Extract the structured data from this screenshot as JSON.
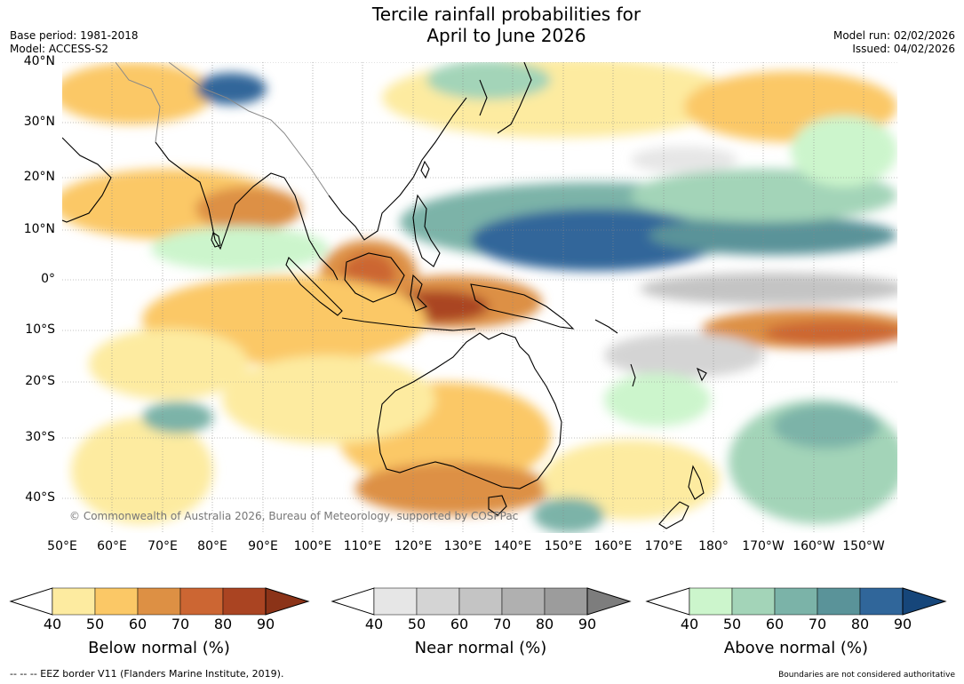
{
  "title_line1": "Tercile rainfall probabilities for",
  "title_line2": "April to June 2026",
  "meta": {
    "base_period": "Base period: 1981-2018",
    "model": "Model: ACCESS-S2",
    "model_run": "Model run: 02/02/2026",
    "issued": "Issued: 04/02/2026"
  },
  "map": {
    "copyright": "© Commonwealth of Australia 2026, Bureau of Meteorology, supported by COSPPac",
    "lat_labels": [
      "40°N",
      "30°N",
      "20°N",
      "10°N",
      "0°",
      "10°S",
      "20°S",
      "30°S",
      "40°S"
    ],
    "lon_labels": [
      "50°E",
      "60°E",
      "70°E",
      "80°E",
      "90°E",
      "100°E",
      "110°E",
      "120°E",
      "130°E",
      "140°E",
      "150°E",
      "160°E",
      "170°E",
      "180°",
      "170°W",
      "160°W",
      "150°W"
    ]
  },
  "colorbars": {
    "below": {
      "title": "Below normal (%)",
      "ticks": [
        "40",
        "50",
        "60",
        "70",
        "80",
        "90"
      ],
      "colors": [
        "#fdeba0",
        "#fbc866",
        "#dd9044",
        "#cc6633",
        "#aa4422",
        "#8b3318"
      ]
    },
    "near": {
      "title": "Near normal (%)",
      "ticks": [
        "40",
        "50",
        "60",
        "70",
        "80",
        "90"
      ],
      "colors": [
        "#e6e6e6",
        "#d4d4d4",
        "#c4c4c4",
        "#b0b0b0",
        "#9c9c9c",
        "#7d7d7d"
      ]
    },
    "above": {
      "title": "Above normal (%)",
      "ticks": [
        "40",
        "50",
        "60",
        "70",
        "80",
        "90"
      ],
      "colors": [
        "#ccf5cc",
        "#a3d4b8",
        "#7bb3a8",
        "#5a9399",
        "#30669a",
        "#16467a"
      ]
    }
  },
  "footer": {
    "eez": "--  --  -- EEZ border V11 (Flanders Marine Institute, 2019).",
    "disclaimer": "Boundaries are not considered authoritative"
  }
}
